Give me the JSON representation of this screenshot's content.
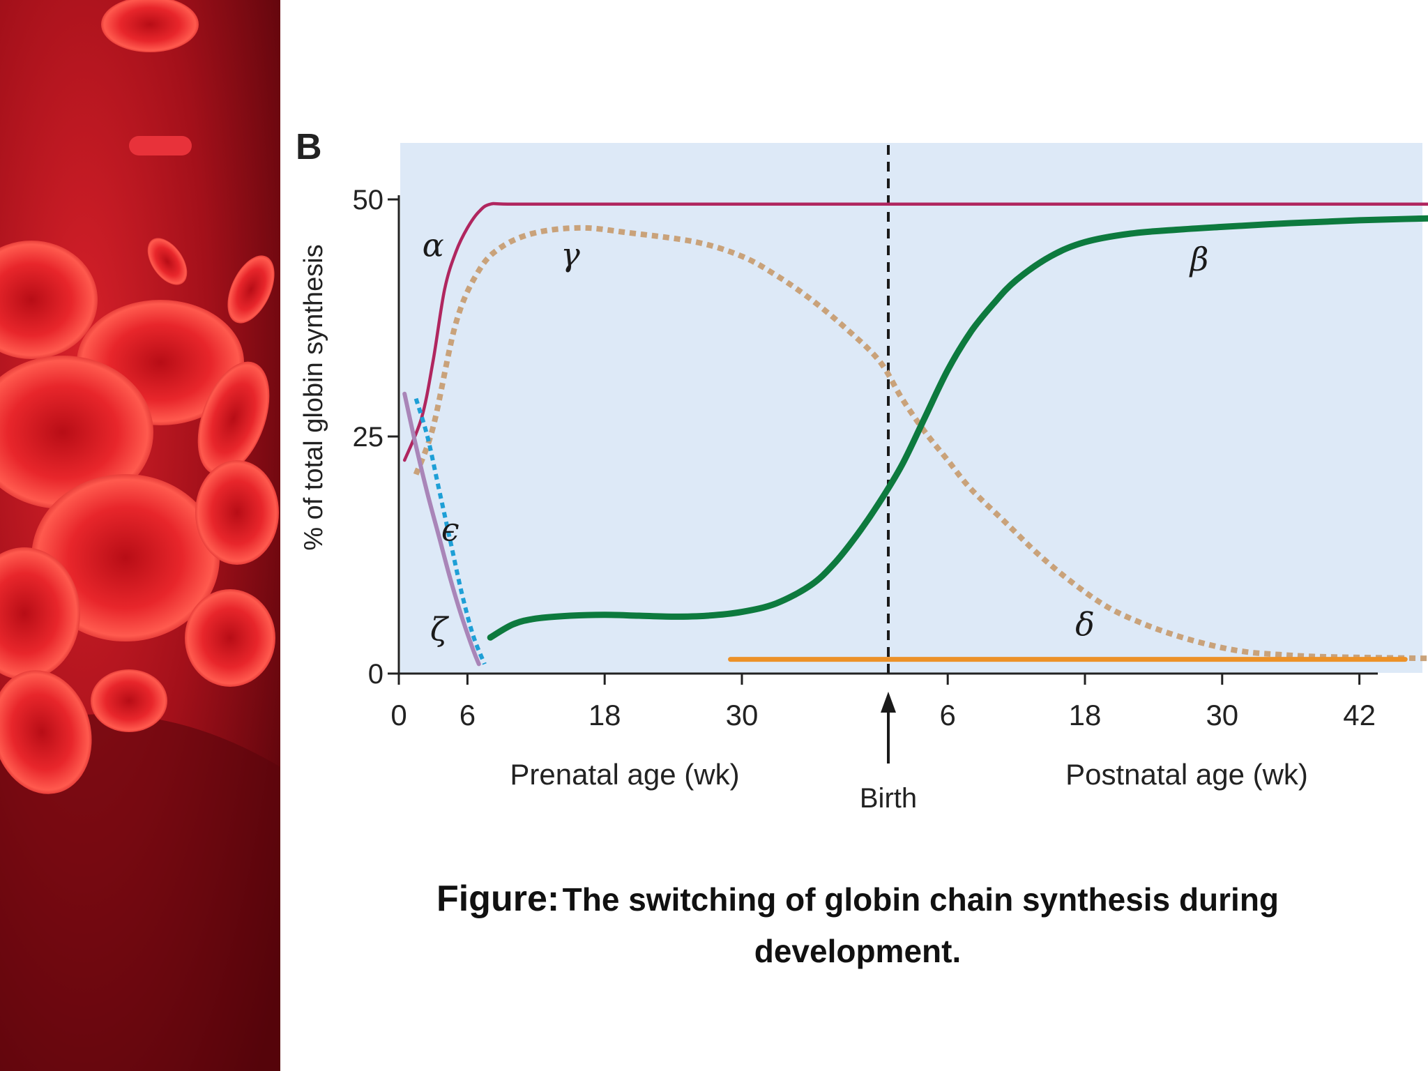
{
  "caption": {
    "lead": "Figure:",
    "body": "The switching of globin chain synthesis during development."
  },
  "colors": {
    "panel_background": "#dde9f7",
    "alpha": "#b0265f",
    "gamma": "#c9a27a",
    "beta": "#0d7a3e",
    "delta": "#ec9128",
    "epsilon": "#1e9fd6",
    "zeta": "#a985b8"
  },
  "chart_data": {
    "type": "line",
    "panel_letter": "B",
    "ylabel": "% of total globin synthesis",
    "ylim": [
      0,
      50
    ],
    "yticks": [
      "0",
      "25",
      "50"
    ],
    "xticks_prenatal": [
      "0",
      "6",
      "18",
      "30"
    ],
    "xticks_postnatal": [
      "6",
      "18",
      "30",
      "42"
    ],
    "xlabel_prenatal": "Prenatal age (wk)",
    "xlabel_postnatal": "Postnatal age (wk)",
    "birth_label": "Birth",
    "birth_week": 42,
    "grid": false,
    "series": [
      {
        "name": "α",
        "style": "solid",
        "color": "#b0265f",
        "x": [
          0.5,
          2,
          3,
          4,
          5,
          6,
          7,
          8,
          10,
          20,
          42,
          60,
          80,
          102
        ],
        "y": [
          22.5,
          27,
          33,
          40.5,
          44.5,
          47,
          48.7,
          49.5,
          49.5,
          49.5,
          49.5,
          49.5,
          49.5,
          49.5
        ],
        "label_week": 3,
        "label_value": 44
      },
      {
        "name": "γ",
        "style": "dotted",
        "color": "#c9a27a",
        "x": [
          1.5,
          3,
          5,
          7,
          9,
          12,
          16,
          20,
          26,
          30,
          33,
          36,
          39,
          42,
          44,
          46,
          48,
          50,
          53,
          56,
          59,
          62,
          65,
          68,
          71,
          74,
          77,
          80,
          84,
          90
        ],
        "y": [
          21,
          26,
          37,
          42.5,
          45,
          46.5,
          47,
          46.5,
          45.5,
          44,
          42,
          39.5,
          36.5,
          33,
          29,
          25.5,
          22.5,
          19.5,
          16,
          12.5,
          9.5,
          7,
          5.3,
          4,
          3,
          2.3,
          2,
          1.8,
          1.7,
          1.6
        ],
        "label_week": 15,
        "label_value": 43
      },
      {
        "name": "β",
        "style": "solid",
        "color": "#0d7a3e",
        "x": [
          8,
          10,
          12,
          15,
          18,
          21,
          24,
          27,
          30,
          33,
          36,
          38,
          40,
          42,
          44,
          46,
          48,
          50,
          52,
          54,
          57,
          60,
          64,
          68,
          72,
          78,
          84,
          90,
          96,
          102
        ],
        "y": [
          3.8,
          5.2,
          5.8,
          6.1,
          6.2,
          6.1,
          6,
          6.1,
          6.5,
          7.4,
          9.3,
          11.5,
          14.5,
          18,
          22,
          27,
          32,
          36,
          39,
          41.5,
          44,
          45.5,
          46.4,
          46.8,
          47.1,
          47.5,
          47.8,
          48,
          48.2,
          48.5
        ],
        "label_week": 70,
        "label_value": 42.5
      },
      {
        "name": "δ",
        "style": "solid",
        "color": "#ec9128",
        "x": [
          29,
          36,
          42,
          50,
          60,
          70,
          80,
          88
        ],
        "y": [
          1.5,
          1.5,
          1.5,
          1.5,
          1.5,
          1.5,
          1.5,
          1.5
        ],
        "label_week": 60,
        "label_value": 4
      },
      {
        "name": "ϵ",
        "style": "dotted",
        "color": "#1e9fd6",
        "x": [
          1.5,
          2.5,
          3.5,
          4.5,
          5.5,
          6.5,
          7.5
        ],
        "y": [
          29,
          25,
          19.5,
          14,
          8.5,
          4,
          1
        ],
        "label_week": 4.5,
        "label_value": 14
      },
      {
        "name": "ζ",
        "style": "solid",
        "color": "#a985b8",
        "x": [
          0.5,
          1.5,
          2.5,
          3.5,
          4.5,
          5.5,
          6.5,
          7
        ],
        "y": [
          29.5,
          24,
          19,
          14.5,
          10,
          6,
          2.5,
          1
        ],
        "label_week": 3.5,
        "label_value": 3.5
      }
    ]
  }
}
